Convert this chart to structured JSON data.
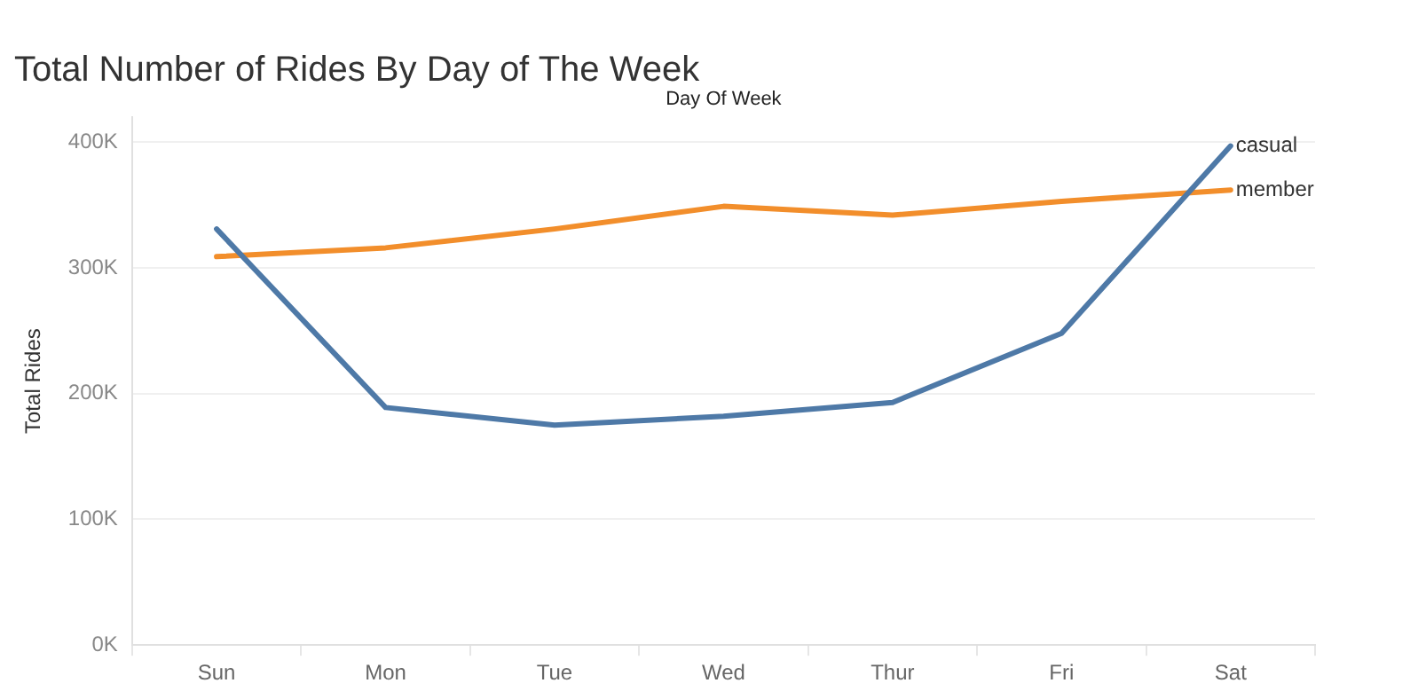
{
  "chart_data": {
    "type": "line",
    "title": "Total Number of Rides By Day of The Week",
    "xlabel": "Day Of Week",
    "ylabel": "Total Rides",
    "categories": [
      "Sun",
      "Mon",
      "Tue",
      "Wed",
      "Thur",
      "Fri",
      "Sat"
    ],
    "series": [
      {
        "name": "casual",
        "color": "#4e79a7",
        "values": [
          331000,
          189000,
          175000,
          182000,
          193000,
          248000,
          397000
        ]
      },
      {
        "name": "member",
        "color": "#f28e2b",
        "values": [
          309000,
          316000,
          331000,
          349000,
          342000,
          353000,
          362000
        ]
      }
    ],
    "ylim": [
      0,
      420000
    ],
    "yticks": [
      {
        "value": 0,
        "label": "0K"
      },
      {
        "value": 100000,
        "label": "100K"
      },
      {
        "value": 200000,
        "label": "200K"
      },
      {
        "value": 300000,
        "label": "300K"
      },
      {
        "value": 400000,
        "label": "400K"
      }
    ],
    "grid": "y",
    "legend": false,
    "marker": "none",
    "line_style": "solid"
  }
}
